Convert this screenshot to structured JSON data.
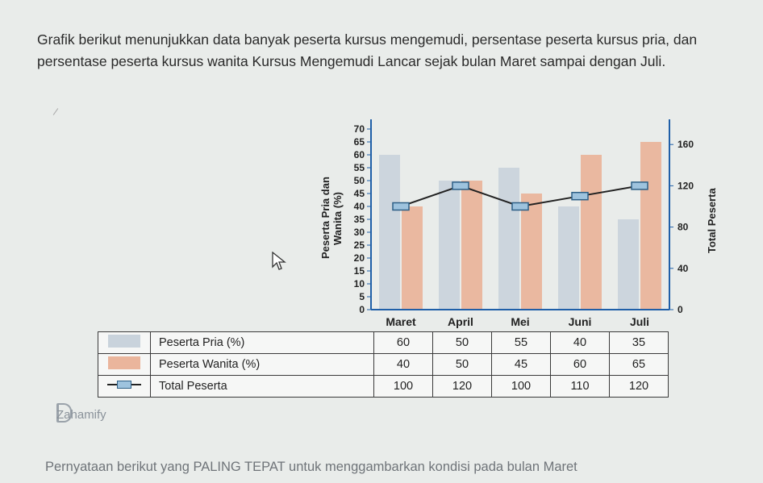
{
  "question": "Grafik berikut menunjukkan data banyak peserta kursus mengemudi, persentase peserta kursus pria, dan persentase peserta kursus wanita Kursus Mengemudi Lancar sejak bulan Maret sampai dengan Juli.",
  "chart_data": {
    "type": "bar",
    "categories": [
      "Maret",
      "April",
      "Mei",
      "Juni",
      "Juli"
    ],
    "series": [
      {
        "name": "Peserta Pria (%)",
        "type": "bar",
        "axis": "left",
        "values": [
          60,
          50,
          55,
          40,
          35
        ],
        "color": "#c9d3dc"
      },
      {
        "name": "Peserta Wanita (%)",
        "type": "bar",
        "axis": "left",
        "values": [
          40,
          50,
          45,
          60,
          65
        ],
        "color": "#eab59c"
      },
      {
        "name": "Total Peserta",
        "type": "line",
        "axis": "right",
        "values": [
          100,
          120,
          100,
          110,
          120
        ],
        "color": "#222222",
        "marker_color": "#9ec3de"
      }
    ],
    "ylabel_left": "Peserta Pria dan Wanita (%)",
    "ylabel_left_lines": [
      "Peserta Pria dan",
      "Wanita (%)"
    ],
    "ylabel_right": "Total Peserta",
    "ylim_left": [
      0,
      70
    ],
    "yticks_left": [
      0,
      5,
      10,
      15,
      20,
      25,
      30,
      35,
      40,
      45,
      50,
      55,
      60,
      65,
      70
    ],
    "ylim_right": [
      0,
      175
    ],
    "yticks_right": [
      0,
      40,
      80,
      120,
      160
    ],
    "axis_color": "#1f5fa8",
    "legend_placement": "bottom table"
  },
  "legend_table": {
    "rows": [
      {
        "label": "Peserta Pria (%)",
        "values": [
          "60",
          "50",
          "55",
          "40",
          "35"
        ]
      },
      {
        "label": "Peserta Wanita (%)",
        "values": [
          "40",
          "50",
          "45",
          "60",
          "65"
        ]
      },
      {
        "label": "Total Peserta",
        "values": [
          "100",
          "120",
          "100",
          "110",
          "120"
        ]
      }
    ]
  },
  "brand": "Zahamify",
  "footer_text": "Pernyataan berikut yang PALING TEPAT untuk menggambarkan kondisi pada bulan Maret"
}
